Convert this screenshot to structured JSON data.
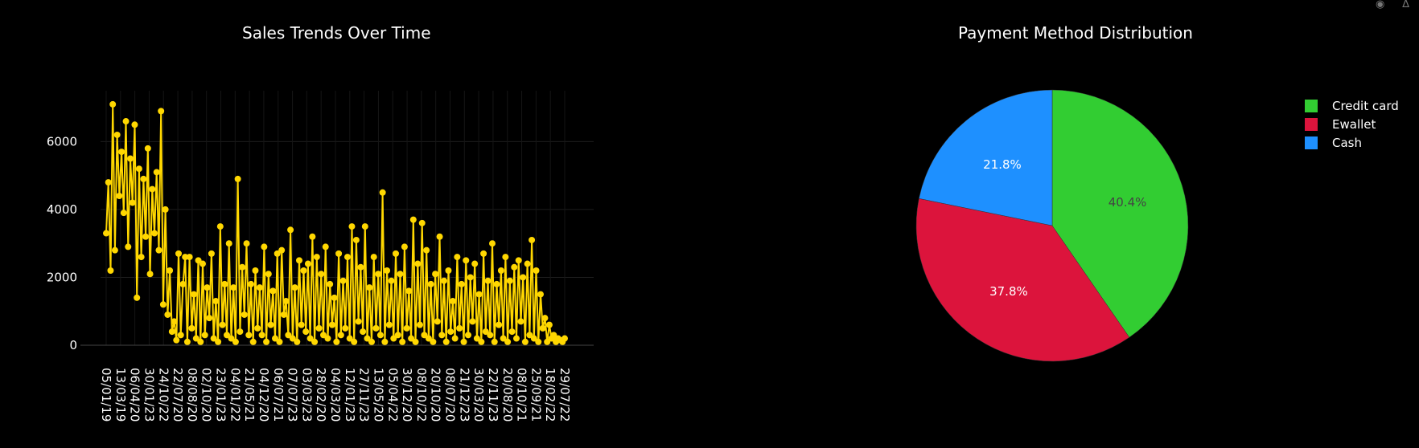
{
  "modebar": {
    "camera_icon": "camera-icon",
    "plotly_icon": "bar-chart-icon"
  },
  "chart_data": [
    {
      "type": "line",
      "title": "Sales Trends Over Time",
      "xlabel": "",
      "ylabel": "",
      "ylim": [
        0,
        7500
      ],
      "yticks": [
        0,
        2000,
        4000,
        6000
      ],
      "xticks": [
        "05/01/19",
        "13/03/19",
        "06/04/20",
        "30/01/23",
        "24/10/22",
        "22/07/20",
        "08/08/20",
        "02/10/20",
        "23/01/23",
        "04/01/22",
        "21/05/21",
        "04/12/20",
        "06/07/21",
        "07/07/23",
        "03/03/23",
        "28/02/20",
        "04/03/20",
        "12/01/23",
        "27/11/23",
        "13/05/20",
        "05/04/22",
        "30/12/20",
        "08/10/22",
        "20/10/20",
        "08/07/20",
        "21/12/23",
        "30/03/20",
        "22/11/23",
        "20/08/20",
        "08/10/21",
        "25/09/21",
        "18/02/22",
        "29/07/22"
      ],
      "color": "#ffd700",
      "grid": true,
      "marker": "circle",
      "values": [
        3300,
        4800,
        2200,
        7100,
        2800,
        6200,
        4400,
        5700,
        3900,
        6600,
        2900,
        5500,
        4200,
        6500,
        1400,
        5200,
        2600,
        4900,
        3200,
        5800,
        2100,
        4600,
        3300,
        5100,
        2800,
        6900,
        1200,
        4000,
        900,
        2200,
        400,
        700,
        150,
        2700,
        300,
        1800,
        2600,
        100,
        2600,
        500,
        1500,
        200,
        2500,
        100,
        2400,
        300,
        1700,
        800,
        2700,
        200,
        1300,
        100,
        3500,
        600,
        1800,
        300,
        3000,
        200,
        1700,
        100,
        4900,
        400,
        2300,
        900,
        3000,
        300,
        1800,
        100,
        2200,
        500,
        1700,
        300,
        2900,
        100,
        2100,
        600,
        1600,
        200,
        2700,
        100,
        2800,
        900,
        1300,
        300,
        3400,
        200,
        1700,
        100,
        2500,
        600,
        2200,
        400,
        2400,
        200,
        3200,
        100,
        2600,
        500,
        2100,
        300,
        2900,
        200,
        1800,
        600,
        1400,
        100,
        2700,
        300,
        1900,
        500,
        2600,
        200,
        3500,
        100,
        3100,
        700,
        2300,
        400,
        3500,
        200,
        1700,
        100,
        2600,
        500,
        2100,
        300,
        4500,
        100,
        2200,
        600,
        1900,
        200,
        2700,
        300,
        2100,
        100,
        2900,
        500,
        1600,
        200,
        3700,
        100,
        2400,
        600,
        3600,
        300,
        2800,
        200,
        1800,
        100,
        2100,
        700,
        3200,
        300,
        1900,
        100,
        2200,
        400,
        1300,
        200,
        2600,
        500,
        1800,
        100,
        2500,
        300,
        2000,
        700,
        2400,
        200,
        1500,
        100,
        2700,
        400,
        1900,
        300,
        3000,
        100,
        1800,
        600,
        2200,
        200,
        2600,
        100,
        1900,
        400,
        2300,
        200,
        2500,
        700,
        2000,
        100,
        2400,
        300,
        3100,
        200,
        2200,
        100,
        1500,
        500,
        800,
        100,
        600,
        200,
        300,
        100,
        200,
        150,
        100,
        200
      ]
    },
    {
      "type": "pie",
      "title": "Payment Method Distribution",
      "labels": [
        "Credit card",
        "Ewallet",
        "Cash"
      ],
      "values": [
        40.4,
        37.8,
        21.8
      ],
      "display": [
        "40.4%",
        "37.8%",
        "21.8%"
      ],
      "colors": [
        "#32cd32",
        "#dc143c",
        "#1e90ff"
      ],
      "label_colors": [
        "#444444",
        "#ffffff",
        "#ffffff"
      ],
      "legend": "top-right"
    }
  ]
}
